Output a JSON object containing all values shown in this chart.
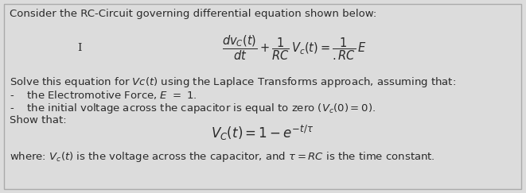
{
  "bg_color": "#dcdcdc",
  "border_color": "#aaaaaa",
  "title_text": "Consider the RC-Circuit governing differential equation shown below:",
  "label_i": "I",
  "equation": "$\\dfrac{dv_C(t)}{dt} + \\dfrac{1}{RC}\\,V_c(t) = \\dfrac{1}{.RC}\\,E$",
  "solve_line": "Solve this equation for $\\mathit{Vc(t)}$ using the Laplace Transforms approach, assuming that:",
  "bullet1": "-    the Electromotive Force, $\\mathit{E}$ $=$ $\\mathit{1}$.",
  "bullet2": "-    the initial voltage across the capacitor is equal to zero ($V_c(0) = 0$).",
  "show_that": "Show that:",
  "result_eq": "$V_C(t) = 1 - e^{-t/\\tau}$",
  "where_line": "where: $\\mathit{V_c(t)}$ is the voltage across the capacitor, and $\\tau = RC$ is the time constant.",
  "font_size_title": 9.5,
  "font_size_body": 9.5,
  "font_size_eq": 10.5,
  "font_size_result": 12,
  "text_color": "#2a2a2a"
}
